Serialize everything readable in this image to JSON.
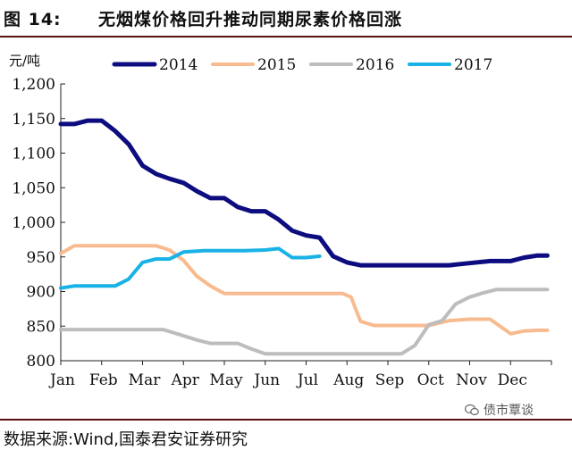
{
  "figure": {
    "label": "图 14:",
    "title": "无烟煤价格回升推动同期尿素价格回涨",
    "source": "数据来源:Wind,国泰君安证券研究",
    "watermark": "债市覃谈"
  },
  "chart_data": {
    "type": "line",
    "title": "无烟煤价格回升推动同期尿素价格回涨",
    "ylabel": "元/吨",
    "xlabel": "",
    "ylim": [
      800,
      1200
    ],
    "yticks": [
      800,
      850,
      900,
      950,
      1000,
      1050,
      1100,
      1150,
      1200
    ],
    "ytick_labels": [
      "800",
      "850",
      "900",
      "950",
      "1,000",
      "1,050",
      "1,100",
      "1,150",
      "1,200"
    ],
    "xlim": [
      1,
      13
    ],
    "month_labels": [
      "Jan",
      "Feb",
      "Mar",
      "Apr",
      "May",
      "Jun",
      "Jul",
      "Aug",
      "Sep",
      "Oct",
      "Nov",
      "Dec"
    ],
    "grid": false,
    "legend_position": "top",
    "series": [
      {
        "name": "2014",
        "color": "#0d0d80",
        "width": 5,
        "x": [
          1,
          1.33,
          1.66,
          2,
          2.33,
          2.66,
          3,
          3.33,
          3.66,
          4,
          4.33,
          4.66,
          5,
          5.33,
          5.66,
          6,
          6.33,
          6.66,
          7,
          7.33,
          7.66,
          8,
          8.33,
          8.66,
          9,
          9.5,
          10,
          10.5,
          11,
          11.5,
          12,
          12.33,
          12.66,
          12.9
        ],
        "values": [
          1142,
          1142,
          1147,
          1147,
          1132,
          1113,
          1082,
          1070,
          1063,
          1057,
          1045,
          1035,
          1035,
          1022,
          1016,
          1016,
          1004,
          988,
          981,
          978,
          951,
          942,
          938,
          938,
          938,
          938,
          938,
          938,
          941,
          944,
          944,
          949,
          952,
          952
        ]
      },
      {
        "name": "2015",
        "color": "#f8bb8f",
        "width": 4,
        "x": [
          1,
          1.33,
          1.66,
          2,
          2.5,
          3,
          3.33,
          3.66,
          4,
          4.33,
          4.66,
          5,
          5.5,
          6,
          6.5,
          7,
          7.5,
          7.9,
          8.1,
          8.33,
          8.66,
          9,
          9.5,
          10,
          10.5,
          11,
          11.5,
          12,
          12.33,
          12.66,
          12.9
        ],
        "values": [
          955,
          966,
          966,
          966,
          966,
          966,
          966,
          960,
          945,
          922,
          908,
          897,
          897,
          897,
          897,
          897,
          897,
          897,
          892,
          857,
          851,
          851,
          851,
          851,
          858,
          860,
          860,
          839,
          843,
          844,
          844
        ]
      },
      {
        "name": "2016",
        "color": "#bdbdbd",
        "width": 4,
        "x": [
          1,
          1.5,
          2,
          2.5,
          3,
          3.5,
          4,
          4.33,
          4.66,
          5,
          5.33,
          5.66,
          6,
          6.5,
          7,
          7.5,
          8,
          8.5,
          9,
          9.33,
          9.66,
          10,
          10.33,
          10.66,
          11,
          11.33,
          11.66,
          12,
          12.5,
          12.9
        ],
        "values": [
          845,
          845,
          845,
          845,
          845,
          845,
          836,
          830,
          825,
          825,
          825,
          817,
          810,
          810,
          810,
          810,
          810,
          810,
          810,
          810,
          822,
          852,
          858,
          882,
          892,
          898,
          903,
          903,
          903,
          903
        ]
      },
      {
        "name": "2017",
        "color": "#19b2e6",
        "width": 4,
        "x": [
          1,
          1.33,
          1.66,
          2,
          2.33,
          2.66,
          3,
          3.33,
          3.66,
          4,
          4.5,
          5,
          5.5,
          6,
          6.33,
          6.66,
          7,
          7.33
        ],
        "values": [
          905,
          908,
          908,
          908,
          908,
          918,
          942,
          947,
          947,
          957,
          959,
          959,
          959,
          960,
          962,
          949,
          949,
          951
        ]
      }
    ]
  }
}
